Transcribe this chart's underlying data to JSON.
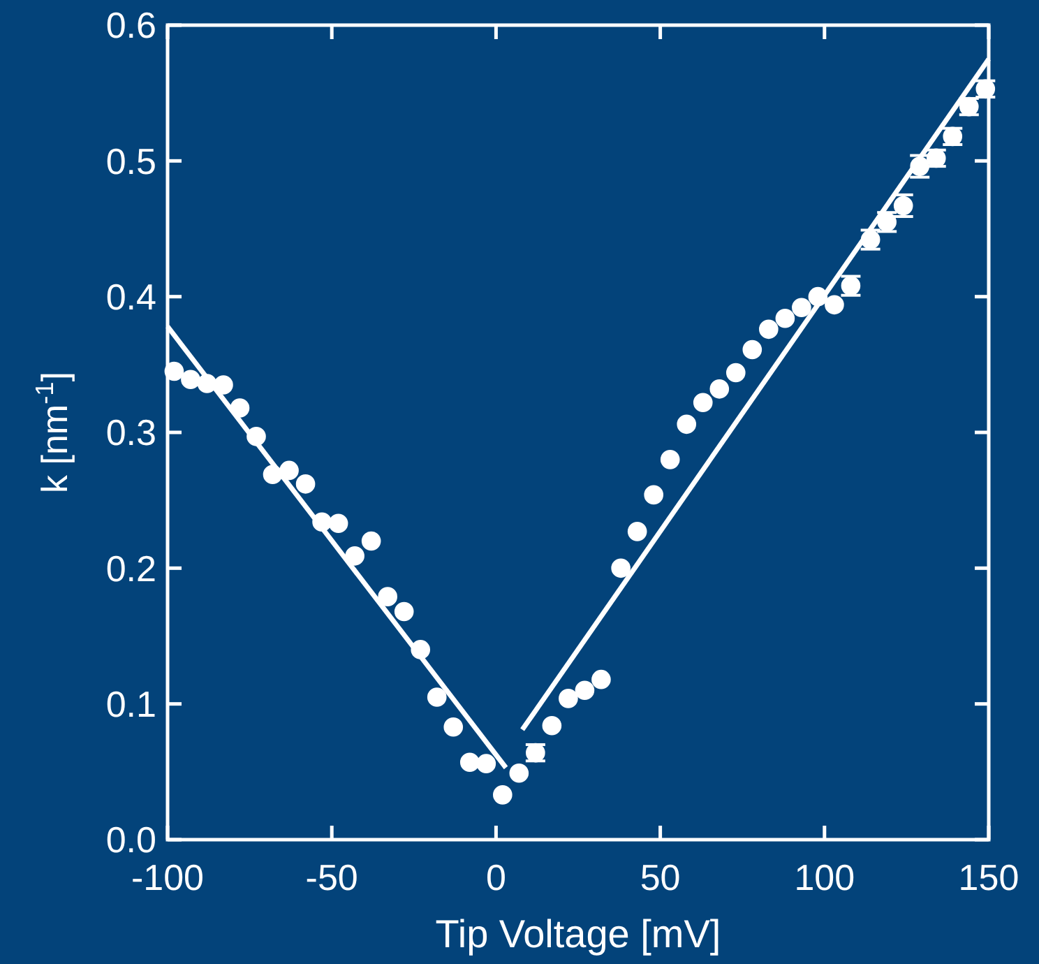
{
  "chart_data": {
    "type": "scatter",
    "xlabel": "Tip Voltage [mV]",
    "ylabel": "k [nm$^{-1}$]",
    "xlim": [
      -100,
      150
    ],
    "ylim": [
      0,
      0.6
    ],
    "xticks": [
      -100,
      -50,
      0,
      50,
      100,
      150
    ],
    "yticks": [
      {
        "value": 0,
        "label": "0.0"
      },
      0.1,
      0.2,
      0.3,
      0.4,
      0.5,
      0.6
    ],
    "grid": false,
    "series": [
      {
        "marker": "circle",
        "color": "#ffffff",
        "x": [
          -98,
          -93,
          -88,
          -83,
          -78,
          -73,
          -68,
          -63,
          -58,
          -53,
          -48,
          -43,
          -38,
          -33,
          -28,
          -23,
          -18,
          -13,
          -8,
          -3,
          2,
          7,
          12,
          17,
          22,
          27,
          32,
          38,
          43,
          48,
          53,
          58,
          63,
          68,
          73,
          78,
          83,
          88,
          93,
          98,
          103,
          108,
          114,
          119,
          124,
          129,
          134,
          139,
          144,
          149
        ],
        "values": [
          0.345,
          0.339,
          0.336,
          0.335,
          0.318,
          0.297,
          0.269,
          0.272,
          0.262,
          0.234,
          0.233,
          0.209,
          0.22,
          0.179,
          0.168,
          0.14,
          0.105,
          0.083,
          0.057,
          0.056,
          0.033,
          0.049,
          0.064,
          0.084,
          0.104,
          0.11,
          0.118,
          0.2,
          0.227,
          0.254,
          0.28,
          0.306,
          0.322,
          0.332,
          0.344,
          0.361,
          0.376,
          0.384,
          0.392,
          0.4,
          0.394,
          0.408,
          0.442,
          0.455,
          0.467,
          0.496,
          0.502,
          0.518,
          0.54,
          0.553
        ],
        "errors": [
          null,
          null,
          null,
          null,
          null,
          null,
          null,
          null,
          null,
          null,
          null,
          null,
          null,
          null,
          null,
          null,
          null,
          null,
          null,
          null,
          null,
          null,
          0.006,
          null,
          null,
          null,
          null,
          null,
          null,
          null,
          null,
          null,
          null,
          null,
          null,
          null,
          null,
          null,
          null,
          null,
          null,
          0.007,
          0.007,
          0.007,
          0.008,
          0.008,
          0.006,
          0.006,
          0.006,
          0.006
        ]
      },
      {
        "type": "line",
        "color": "#ffffff",
        "x": [
          -100,
          3
        ],
        "values": [
          0.378,
          0.053
        ],
        "line_style": "solid"
      },
      {
        "type": "line",
        "color": "#ffffff",
        "x": [
          8,
          150
        ],
        "values": [
          0.081,
          0.575
        ],
        "line_style": "solid"
      }
    ]
  }
}
